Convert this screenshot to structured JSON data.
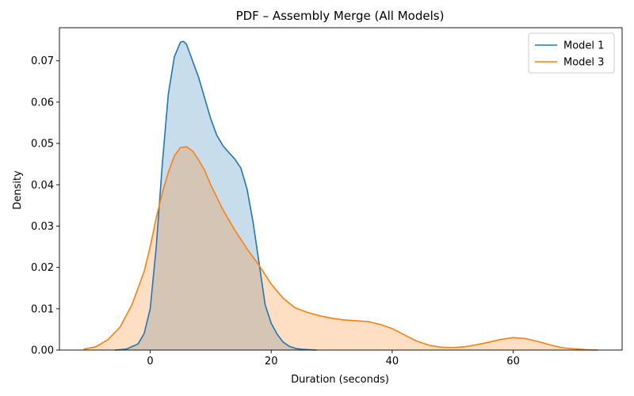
{
  "chart_data": {
    "type": "area",
    "title": "PDF – Assembly Merge (All Models)",
    "xlabel": "Duration (seconds)",
    "ylabel": "Density",
    "xlim": [
      -15,
      78
    ],
    "ylim": [
      0,
      0.078
    ],
    "xticks": [
      0,
      20,
      40,
      60
    ],
    "yticks": [
      0.0,
      0.01,
      0.02,
      0.03,
      0.04,
      0.05,
      0.06,
      0.07
    ],
    "ytick_labels": [
      "0.00",
      "0.01",
      "0.02",
      "0.03",
      "0.04",
      "0.05",
      "0.06",
      "0.07"
    ],
    "legend": {
      "position": "upper-right"
    },
    "grid": false,
    "series": [
      {
        "name": "Model 1",
        "color": "#1f77b4",
        "fill": "#c6dbef",
        "x": [
          -5.8,
          -4,
          -2,
          -1,
          0,
          1,
          2,
          3,
          4,
          5,
          5.5,
          6,
          7,
          8,
          9,
          10,
          11,
          12,
          13,
          14,
          15,
          16,
          17,
          18,
          19,
          20,
          21,
          22,
          23,
          24,
          25,
          26,
          27.5
        ],
        "y": [
          0.0,
          0.0002,
          0.0015,
          0.004,
          0.01,
          0.025,
          0.045,
          0.062,
          0.071,
          0.0745,
          0.0747,
          0.074,
          0.07,
          0.066,
          0.061,
          0.056,
          0.052,
          0.0495,
          0.0478,
          0.0462,
          0.044,
          0.039,
          0.031,
          0.021,
          0.011,
          0.0065,
          0.0038,
          0.0019,
          0.0009,
          0.0004,
          0.0002,
          0.0001,
          0.0
        ]
      },
      {
        "name": "Model 3",
        "color": "#ff7f0e",
        "fill": "#ffd4a8",
        "x": [
          -11,
          -9,
          -7,
          -5,
          -3,
          -1,
          0,
          1,
          2,
          3,
          4,
          5,
          6,
          7,
          8,
          9,
          10,
          12,
          14,
          16,
          18,
          20,
          22,
          24,
          26,
          28,
          30,
          32,
          34,
          36,
          38,
          40,
          42,
          44,
          46,
          48,
          50,
          52,
          54,
          56,
          58,
          60,
          62,
          64,
          66,
          68,
          70,
          72,
          74
        ],
        "y": [
          0.0002,
          0.0008,
          0.0025,
          0.0055,
          0.011,
          0.019,
          0.025,
          0.032,
          0.038,
          0.043,
          0.047,
          0.049,
          0.0492,
          0.0482,
          0.046,
          0.0435,
          0.04,
          0.034,
          0.029,
          0.0245,
          0.0205,
          0.016,
          0.0125,
          0.0102,
          0.0091,
          0.0083,
          0.0077,
          0.0073,
          0.0071,
          0.0069,
          0.0062,
          0.0052,
          0.0037,
          0.0022,
          0.0012,
          0.0007,
          0.0006,
          0.0008,
          0.0013,
          0.0019,
          0.0026,
          0.003,
          0.0028,
          0.0021,
          0.0013,
          0.0006,
          0.0003,
          0.0001,
          0.0
        ]
      }
    ]
  }
}
